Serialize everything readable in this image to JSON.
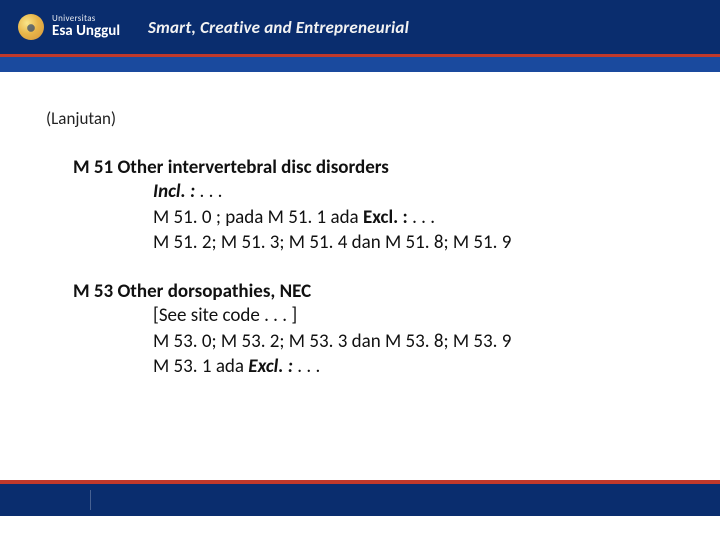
{
  "colors": {
    "navy": "#0a2d6e",
    "navy_light": "#1a4a9e",
    "red": "#c0392b",
    "white": "#ffffff",
    "text": "#111111"
  },
  "header": {
    "university_small": "Universitas",
    "university_name": "Esa Unggul",
    "tagline": "Smart, Creative and Entrepreneurial"
  },
  "subheading": "(Lanjutan)",
  "sections": [
    {
      "heading": "M 51 Other intervertebral disc disorders",
      "lines": [
        {
          "runs": [
            {
              "t": "Incl. : ",
              "cls": "em"
            },
            {
              "t": ". . .",
              "cls": ""
            }
          ]
        },
        {
          "runs": [
            {
              "t": "M 51. 0   ;  pada  M 51. 1   ada ",
              "cls": ""
            },
            {
              "t": "Excl. :  ",
              "cls": "b"
            },
            {
              "t": ". . .",
              "cls": ""
            }
          ]
        },
        {
          "runs": [
            {
              "t": "M 51. 2;  M 51. 3; M 51. 4  dan M 51. 8; M 51. 9",
              "cls": ""
            }
          ]
        }
      ]
    },
    {
      "heading": "M 53 Other dorsopathies, NEC",
      "lines": [
        {
          "runs": [
            {
              "t": "[See site code . . .                                            ]",
              "cls": ""
            }
          ]
        },
        {
          "runs": [
            {
              "t": "M 53. 0;  M 53. 2;  M 53. 3  dan M 53. 8; M 53. 9",
              "cls": ""
            }
          ]
        },
        {
          "runs": [
            {
              "t": "M 53. 1  ada  ",
              "cls": ""
            },
            {
              "t": "Excl. :  ",
              "cls": "em"
            },
            {
              "t": ". . .",
              "cls": ""
            }
          ]
        }
      ]
    }
  ]
}
